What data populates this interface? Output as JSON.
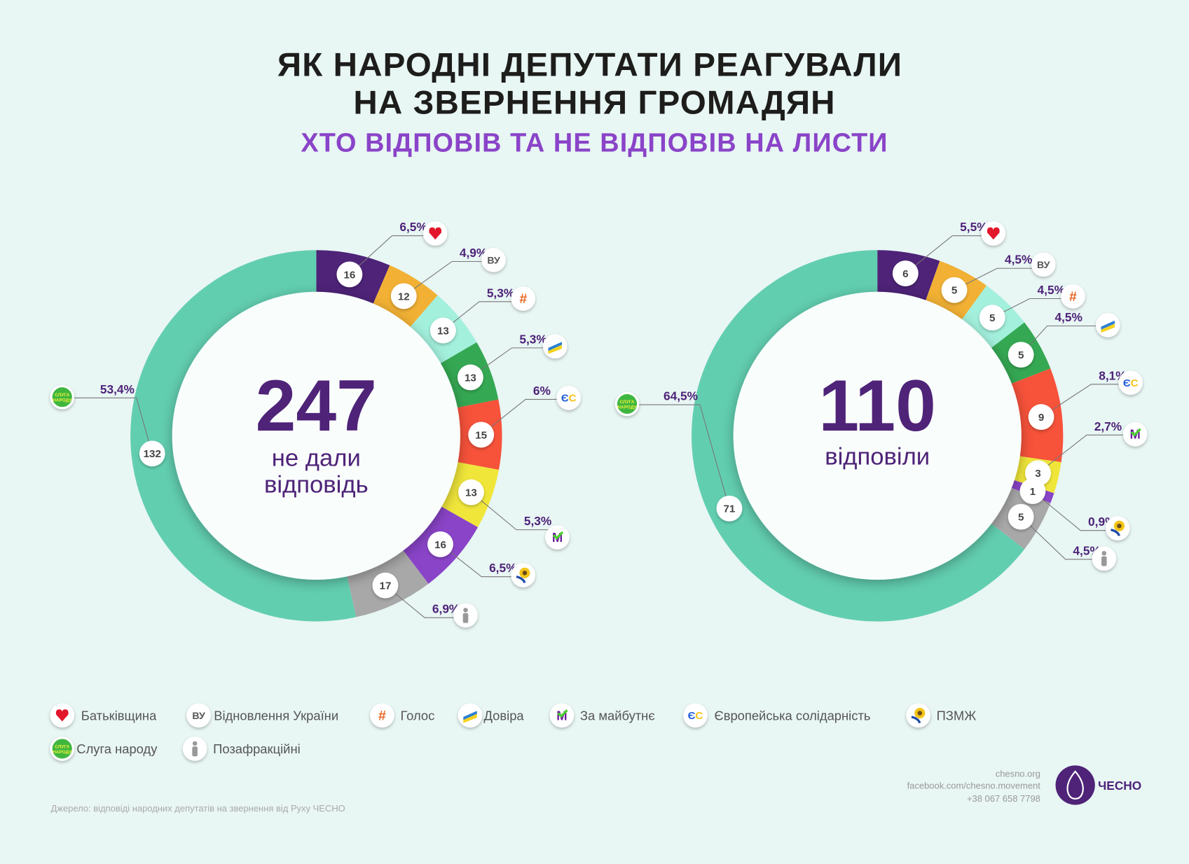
{
  "title": {
    "line1": "ЯК НАРОДНІ ДЕПУТАТИ РЕАГУВАЛИ",
    "line2": "НА ЗВЕРНЕННЯ ГРОМАДЯН",
    "subtitle": "ХТО ВІДПОВІВ ТА НЕ ВІДПОВІВ НА ЛИСТИ"
  },
  "parties": [
    {
      "name": "Батьківщина",
      "color": "#4e2378",
      "icon": "heart-icon"
    },
    {
      "name": "Відновлення України",
      "color": "#f2b134",
      "icon": "vu-icon",
      "icon_text": "ВУ"
    },
    {
      "name": "Голос",
      "color": "#a3f0dd",
      "icon": "holos-icon"
    },
    {
      "name": "Довіра",
      "color": "#35a853",
      "icon": "dovira-icon"
    },
    {
      "name": "Європейська солідарність",
      "color": "#f7523a",
      "icon": "es-icon",
      "icon_text": "ЄС"
    },
    {
      "name": "За майбутнє",
      "color": "#f0e63a",
      "icon": "m-icon",
      "icon_text": "M"
    },
    {
      "name": "ПЗМЖ",
      "color": "#8a44c8",
      "icon": "sunflower-icon"
    },
    {
      "name": "Позафракційні",
      "color": "#a8a8a8",
      "icon": "person-icon"
    },
    {
      "name": "Слуга народу",
      "color": "#62ceb0",
      "icon": "sluha-icon",
      "icon_text": "СЛУГА НАРОДУ"
    }
  ],
  "chart_data": [
    {
      "type": "pie",
      "donut": true,
      "center_value": "247",
      "center_label_1": "не дали",
      "center_label_2": "відповідь",
      "categories": [
        "Батьківщина",
        "Відновлення України",
        "Голос",
        "Довіра",
        "Європейська солідарність",
        "За майбутнє",
        "ПЗМЖ",
        "Позафракційні",
        "Слуга народу"
      ],
      "values": [
        16,
        12,
        13,
        13,
        15,
        13,
        16,
        17,
        132
      ],
      "percent_labels": [
        "6,5%",
        "4,9%",
        "5,3%",
        "5,3%",
        "6%",
        "5,3%",
        "6,5%",
        "6,9%",
        "53,4%"
      ]
    },
    {
      "type": "pie",
      "donut": true,
      "center_value": "110",
      "center_label_1": "відповіли",
      "categories": [
        "Батьківщина",
        "Відновлення України",
        "Голос",
        "Довіра",
        "Європейська солідарність",
        "За майбутнє",
        "ПЗМЖ",
        "Позафракційні",
        "Слуга народу"
      ],
      "values": [
        6,
        5,
        5,
        5,
        9,
        3,
        1,
        5,
        71
      ],
      "percent_labels": [
        "5,5%",
        "4,5%",
        "4,5%",
        "4,5%",
        "8,1%",
        "2,7%",
        "0,9%",
        "4,5%",
        "64,5%"
      ]
    }
  ],
  "legend_order": [
    0,
    1,
    2,
    3,
    5,
    4,
    6,
    8,
    7
  ],
  "footer": {
    "site": "chesno.org",
    "facebook": "facebook.com/chesno.movement",
    "phone": "+38 067 658 7798",
    "logo_text": "ЧЕСНО",
    "source": "Джерело: відповіді народних депутатів на звернення від Руху ЧЕСНО"
  }
}
